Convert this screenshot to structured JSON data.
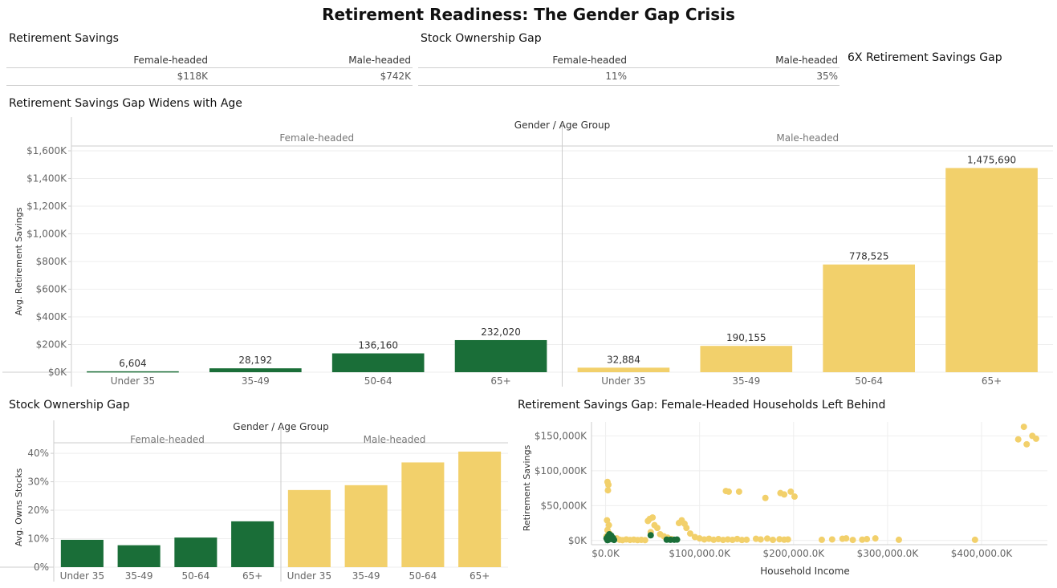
{
  "page": {
    "title": "Retirement Readiness: The Gender Gap Crisis"
  },
  "kpis": {
    "savings": {
      "title": "Retirement Savings",
      "headers": [
        "Female-headed",
        "Male-headed"
      ],
      "values": [
        "$118K",
        "$742K"
      ]
    },
    "stocks": {
      "title": "Stock Ownership Gap",
      "headers": [
        "Female-headed",
        "Male-headed"
      ],
      "values": [
        "11%",
        "35%"
      ]
    },
    "callout": "6X Retirement Savings Gap"
  },
  "colors": {
    "female": "#1a6e38",
    "male": "#f2d06b",
    "grid": "#eeeeee",
    "axis": "#cccccc",
    "tick": "#666666"
  },
  "chart_data": [
    {
      "id": "savings_by_age",
      "type": "bar",
      "title": "Retirement Savings Gap Widens with Age",
      "header": "Gender  /  Age Group",
      "ylabel": "Avg. Retirement Savings",
      "xlabel": "",
      "ylim": [
        0,
        1600000
      ],
      "yticks": [
        0,
        200000,
        400000,
        600000,
        800000,
        1000000,
        1200000,
        1400000,
        1600000
      ],
      "ytick_labels": [
        "$0K",
        "$200K",
        "$400K",
        "$600K",
        "$800K",
        "$1,000K",
        "$1,200K",
        "$1,400K",
        "$1,600K"
      ],
      "categories": [
        "Under 35",
        "35-49",
        "50-64",
        "65+"
      ],
      "series": [
        {
          "name": "Female-headed",
          "values": [
            6604,
            28192,
            136160,
            232020
          ],
          "labels": [
            "6,604",
            "28,192",
            "136,160",
            "232,020"
          ]
        },
        {
          "name": "Male-headed",
          "values": [
            32884,
            190155,
            778525,
            1475690
          ],
          "labels": [
            "32,884",
            "190,155",
            "778,525",
            "1,475,690"
          ]
        }
      ]
    },
    {
      "id": "stocks_by_age",
      "type": "bar",
      "title": "Stock Ownership Gap",
      "header": "Gender  /  Age Group",
      "ylabel": "Avg. Owns Stocks",
      "xlabel": "",
      "ylim": [
        0,
        0.42
      ],
      "yticks": [
        0,
        0.1,
        0.2,
        0.3,
        0.4
      ],
      "ytick_labels": [
        "0%",
        "10%",
        "20%",
        "30%",
        "40%"
      ],
      "categories": [
        "Under 35",
        "35-49",
        "50-64",
        "65+"
      ],
      "series": [
        {
          "name": "Female-headed",
          "values": [
            0.096,
            0.077,
            0.104,
            0.161
          ]
        },
        {
          "name": "Male-headed",
          "values": [
            0.271,
            0.288,
            0.368,
            0.406
          ]
        }
      ]
    },
    {
      "id": "income_vs_savings",
      "type": "scatter",
      "title": "Retirement Savings Gap: Female-Headed Households Left Behind",
      "xlabel": "Household Income",
      "ylabel": "Retirement Savings",
      "xlim": [
        -15000,
        470000
      ],
      "ylim": [
        -6000,
        170000
      ],
      "xticks": [
        0,
        100000,
        200000,
        300000,
        400000
      ],
      "xtick_labels": [
        "$0.0K",
        "$100,000.0K",
        "$200,000.0K",
        "$300,000.0K",
        "$400,000.0K"
      ],
      "yticks": [
        0,
        50000,
        100000,
        150000
      ],
      "ytick_labels": [
        "$0K",
        "$50,000K",
        "$100,000K",
        "$150,000K"
      ],
      "series": [
        {
          "name": "Male-headed",
          "points": [
            [
              2000,
              84000
            ],
            [
              3000,
              80000
            ],
            [
              2500,
              72000
            ],
            [
              1500,
              29000
            ],
            [
              3500,
              22000
            ],
            [
              2000,
              15000
            ],
            [
              4000,
              10000
            ],
            [
              1000,
              6000
            ],
            [
              5000,
              4000
            ],
            [
              7000,
              2000
            ],
            [
              9000,
              1000
            ],
            [
              12000,
              3000
            ],
            [
              15000,
              1000
            ],
            [
              18000,
              500
            ],
            [
              22000,
              1500
            ],
            [
              26000,
              800
            ],
            [
              30000,
              1200
            ],
            [
              34000,
              600
            ],
            [
              38000,
              900
            ],
            [
              42000,
              500
            ],
            [
              47000,
              31000
            ],
            [
              50000,
              33000
            ],
            [
              45000,
              28000
            ],
            [
              52000,
              22000
            ],
            [
              55000,
              18000
            ],
            [
              48000,
              12000
            ],
            [
              58000,
              9000
            ],
            [
              62000,
              6000
            ],
            [
              66000,
              4000
            ],
            [
              70000,
              2000
            ],
            [
              78000,
              25000
            ],
            [
              81000,
              29000
            ],
            [
              84000,
              24000
            ],
            [
              86000,
              18000
            ],
            [
              90000,
              10000
            ],
            [
              95000,
              5000
            ],
            [
              100000,
              3000
            ],
            [
              105000,
              1500
            ],
            [
              110000,
              2500
            ],
            [
              115000,
              1000
            ],
            [
              120000,
              2000
            ],
            [
              125000,
              800
            ],
            [
              130000,
              1500
            ],
            [
              135000,
              900
            ],
            [
              140000,
              2200
            ],
            [
              145000,
              700
            ],
            [
              150000,
              1100
            ],
            [
              160000,
              2500
            ],
            [
              165000,
              1500
            ],
            [
              172000,
              2800
            ],
            [
              178000,
              900
            ],
            [
              185000,
              1800
            ],
            [
              190000,
              1200
            ],
            [
              194000,
              1500
            ],
            [
              128000,
              71000
            ],
            [
              131000,
              70000
            ],
            [
              142000,
              70000
            ],
            [
              170000,
              61000
            ],
            [
              186000,
              68000
            ],
            [
              190000,
              66000
            ],
            [
              197000,
              70000
            ],
            [
              201000,
              63000
            ],
            [
              230000,
              1000
            ],
            [
              241000,
              1500
            ],
            [
              252000,
              2500
            ],
            [
              256000,
              3000
            ],
            [
              263000,
              800
            ],
            [
              273000,
              1200
            ],
            [
              278000,
              2000
            ],
            [
              287000,
              3000
            ],
            [
              312000,
              1000
            ],
            [
              393000,
              1000
            ],
            [
              439000,
              145000
            ],
            [
              448000,
              138000
            ],
            [
              445000,
              163000
            ],
            [
              454000,
              150000
            ],
            [
              458000,
              146000
            ]
          ]
        },
        {
          "name": "Female-headed",
          "points": [
            [
              1000,
              3000
            ],
            [
              2500,
              6000
            ],
            [
              4000,
              9000
            ],
            [
              5500,
              4000
            ],
            [
              7000,
              2000
            ],
            [
              3000,
              1000
            ],
            [
              6000,
              7000
            ],
            [
              8000,
              3500
            ],
            [
              4500,
              5000
            ],
            [
              2000,
              500
            ],
            [
              9000,
              800
            ],
            [
              48000,
              7500
            ],
            [
              65000,
              1200
            ],
            [
              69000,
              1000
            ],
            [
              73000,
              1100
            ],
            [
              76000,
              1300
            ]
          ]
        }
      ]
    }
  ]
}
